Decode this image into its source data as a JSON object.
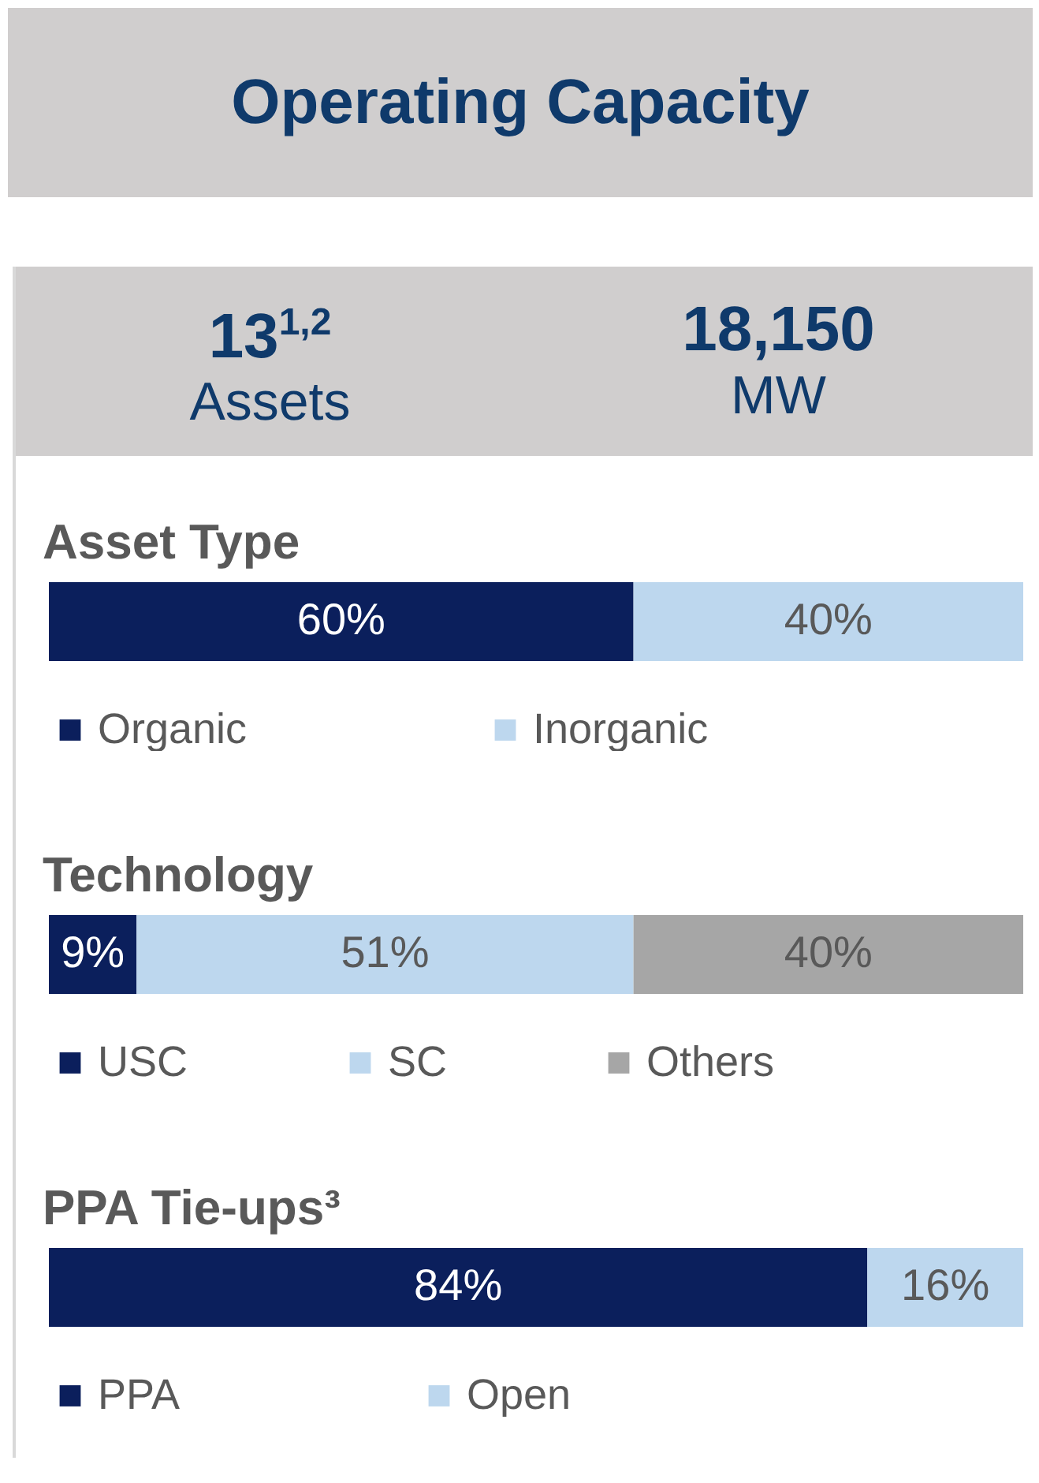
{
  "chart_data": [
    {
      "type": "other",
      "title": "Operating Capacity",
      "annotations": [
        "13$^{1,2}$",
        "Assets",
        "18,150",
        "MW"
      ]
    },
    {
      "type": "bar",
      "title": "Asset Type",
      "orientation": "horizontal",
      "stacked": true,
      "categories": [
        null
      ],
      "legend": "bottom",
      "series": [
        {
          "name": "Organic",
          "color": "#0b1f5c",
          "values": [
            60
          ],
          "value_labels": [
            "60%"
          ]
        },
        {
          "name": "Inorganic",
          "color": "#bdd7ee",
          "values": [
            40
          ],
          "value_labels": [
            "40%"
          ]
        }
      ]
    },
    {
      "type": "bar",
      "title": "Technology",
      "orientation": "horizontal",
      "stacked": true,
      "categories": [
        null
      ],
      "legend": "bottom",
      "series": [
        {
          "name": "USC",
          "color": "#0b1f5c",
          "values": [
            9
          ],
          "value_labels": [
            "9%"
          ]
        },
        {
          "name": "SC",
          "color": "#bdd7ee",
          "values": [
            51
          ],
          "value_labels": [
            "51%"
          ]
        },
        {
          "name": "Others",
          "color": "#a6a6a6",
          "values": [
            40
          ],
          "value_labels": [
            "40%"
          ]
        }
      ]
    },
    {
      "type": "bar",
      "title": "PPA Tie-ups³",
      "orientation": "horizontal",
      "stacked": true,
      "categories": [
        null
      ],
      "legend": "bottom",
      "series": [
        {
          "name": "PPA",
          "color": "#0b1f5c",
          "values": [
            84
          ],
          "value_labels": [
            "84%"
          ]
        },
        {
          "name": "Open",
          "color": "#bdd7ee",
          "values": [
            16
          ],
          "value_labels": [
            "16%"
          ]
        }
      ]
    }
  ]
}
